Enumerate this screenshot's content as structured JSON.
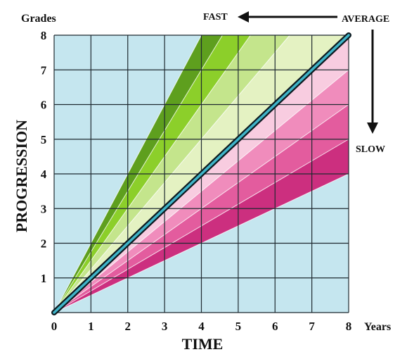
{
  "chart_data": {
    "type": "line",
    "xlabel": "TIME",
    "ylabel": "PROGRESSION",
    "x_unit": "Years",
    "y_unit": "Grades",
    "xlim": [
      0,
      8
    ],
    "ylim": [
      0,
      8
    ],
    "x_ticks": [
      "0",
      "1",
      "2",
      "3",
      "4",
      "5",
      "6",
      "7",
      "8"
    ],
    "y_ticks": [
      "1",
      "2",
      "3",
      "4",
      "5",
      "6",
      "7",
      "8"
    ],
    "grid": true,
    "background_color": "#c5e6ef",
    "series": [
      {
        "slope": 2.0,
        "band_color": "#5e9f1e"
      },
      {
        "slope": 1.75,
        "band_color": "#8ccf2a"
      },
      {
        "slope": 1.5,
        "band_color": "#c4e58c"
      },
      {
        "slope": 1.25,
        "band_color": "#e4f2c2"
      },
      {
        "slope": 1.0,
        "line_color": "#3fb4c8"
      },
      {
        "slope": 0.875,
        "band_color": "#f8cce0"
      },
      {
        "slope": 0.75,
        "band_color": "#f08cbc"
      },
      {
        "slope": 0.625,
        "band_color": "#e35c9e"
      },
      {
        "slope": 0.5,
        "band_color": "#cc2f7f"
      }
    ],
    "annotations": {
      "fast": "FAST",
      "average": "AVERAGE",
      "slow": "SLOW"
    }
  }
}
